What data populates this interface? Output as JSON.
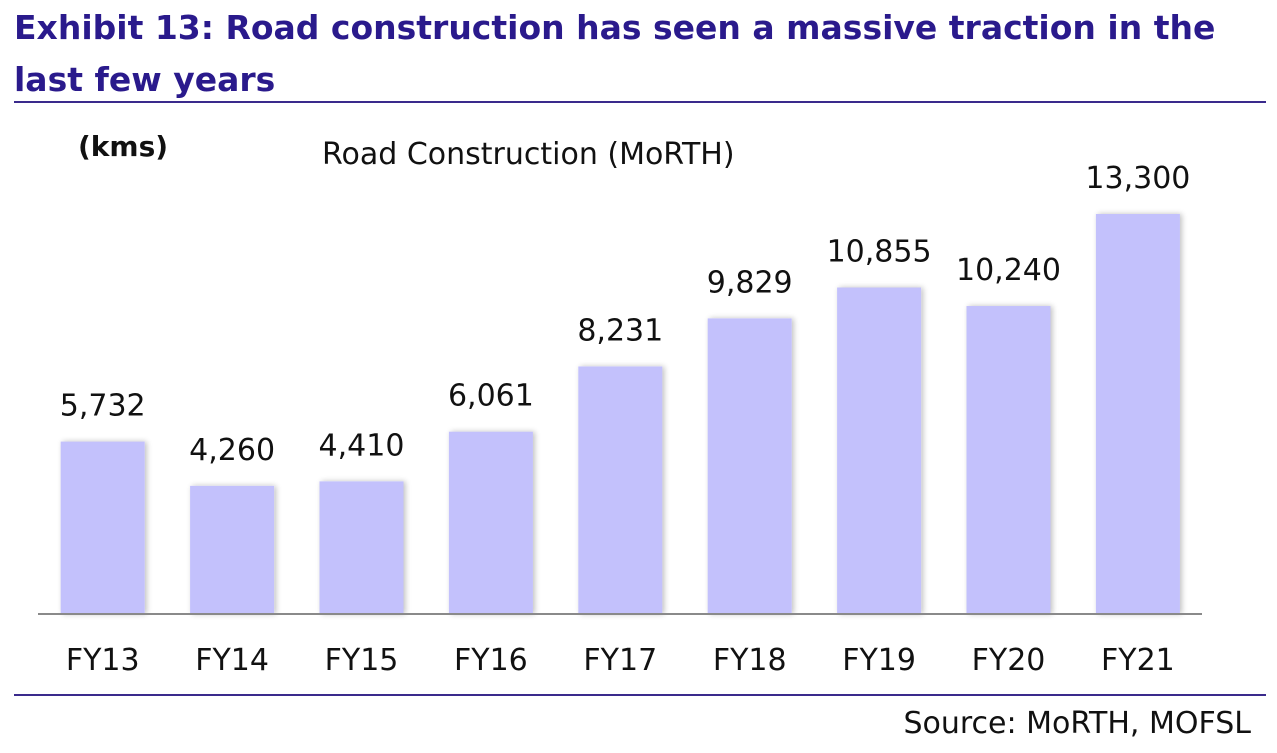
{
  "exhibit": {
    "title": "Exhibit 13: Road construction has seen a massive traction in the last few years",
    "source": "Source: MoRTH, MOFSL"
  },
  "colors": {
    "title": "#2a1a8c",
    "bar": "#c3c1fc",
    "axis": "#8a8a8a",
    "rule": "#3a2a8c"
  },
  "chart_data": {
    "type": "bar",
    "title": "Road Construction (MoRTH)",
    "ylabel": "(kms)",
    "xlabel": "",
    "categories": [
      "FY13",
      "FY14",
      "FY15",
      "FY16",
      "FY17",
      "FY18",
      "FY19",
      "FY20",
      "FY21"
    ],
    "values": [
      5732,
      4260,
      4410,
      6061,
      8231,
      9829,
      10855,
      10240,
      13300
    ],
    "data_labels": [
      "5,732",
      "4,260",
      "4,410",
      "6,061",
      "8,231",
      "9,829",
      "10,855",
      "10,240",
      "13,300"
    ],
    "ylim": [
      0,
      13300
    ],
    "grid": false,
    "legend": "none"
  }
}
